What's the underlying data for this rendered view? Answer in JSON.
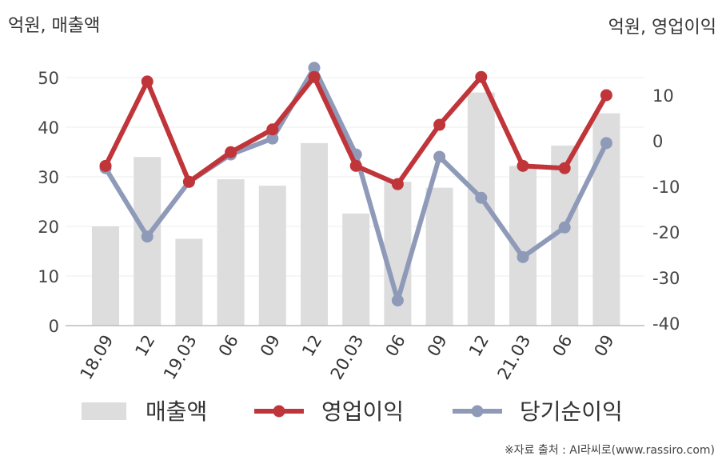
{
  "chart_data": {
    "type": "bar+line",
    "categories": [
      "18.09",
      "12",
      "19.03",
      "06",
      "09",
      "12",
      "20.03",
      "06",
      "09",
      "12",
      "21.03",
      "06",
      "09"
    ],
    "y_left_label": "억원, 매출액",
    "y_right_label": "억원, 영업이익",
    "y_left_lim": [
      0,
      50
    ],
    "y_left_ticks": [
      0,
      10,
      20,
      30,
      40,
      50
    ],
    "y_right_lim": [
      -40,
      10
    ],
    "y_right_ticks": [
      -40,
      -30,
      -20,
      -10,
      0,
      10
    ],
    "grid": true,
    "legend_position": "bottom",
    "series": [
      {
        "name": "매출액",
        "type": "bar",
        "axis": "left",
        "color": "#dddddd",
        "values": [
          20,
          34,
          17.5,
          29.5,
          28.2,
          36.8,
          22.6,
          29,
          27.8,
          47,
          32.2,
          36.3,
          42.8
        ]
      },
      {
        "name": "영업이익",
        "type": "line",
        "axis": "right",
        "color": "#c0353a",
        "values": [
          -5.5,
          13,
          -9,
          -2.5,
          2.5,
          14,
          -5.5,
          -9.5,
          3.5,
          14,
          -5.5,
          -6,
          10
        ]
      },
      {
        "name": "당기순이익",
        "type": "line",
        "axis": "right",
        "color": "#8e9ab8",
        "values": [
          -6,
          -21,
          -9,
          -3,
          0.5,
          16,
          -3,
          -35,
          -3.5,
          -12.5,
          -25.5,
          -19,
          -0.5
        ]
      }
    ]
  },
  "source_text": "※자료 출처 : AI라씨로(www.rassiro.com)"
}
